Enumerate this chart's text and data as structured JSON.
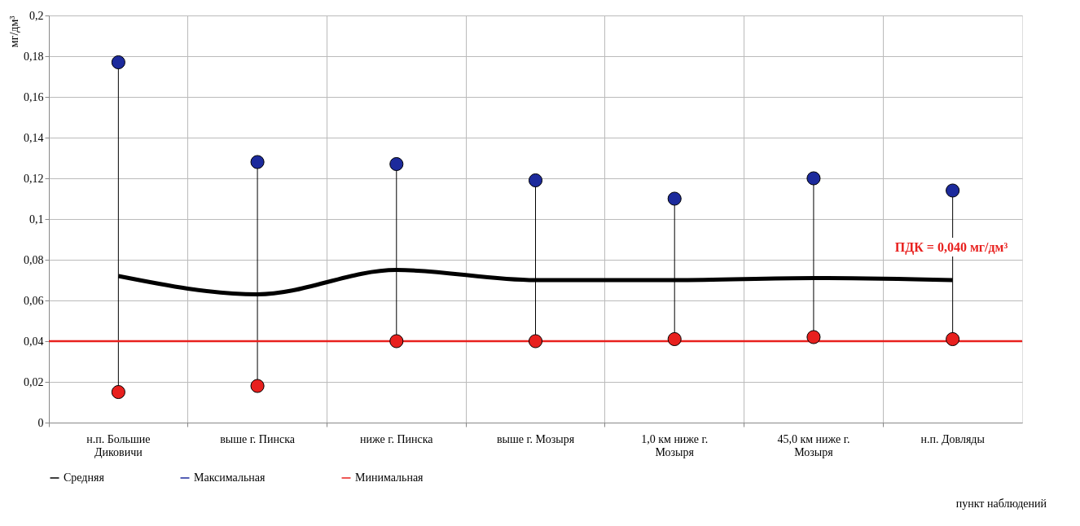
{
  "chart_data": {
    "type": "line",
    "ylabel": "мг/дм³",
    "xlabel": "пункт наблюдений",
    "categories": [
      "н.п. Большие\nДиковичи",
      "выше г. Пинска",
      "ниже г. Пинска",
      "выше г. Мозыря",
      "1,0 км ниже г.\nМозыря",
      "45,0 км ниже г.\nМозыря",
      "н.п. Довляды"
    ],
    "series": [
      {
        "name": "Средняя",
        "type": "line",
        "color": "#000000",
        "values": [
          0.072,
          0.063,
          0.075,
          0.07,
          0.07,
          0.071,
          0.07
        ]
      },
      {
        "name": "Максимальная",
        "type": "scatter",
        "marker": "circle",
        "color": "#1c2a9c",
        "values": [
          0.177,
          0.128,
          0.127,
          0.119,
          0.11,
          0.12,
          0.114
        ]
      },
      {
        "name": "Минимальная",
        "type": "scatter",
        "marker": "circle",
        "color": "#e8201e",
        "values": [
          0.015,
          0.018,
          0.04,
          0.04,
          0.041,
          0.042,
          0.041
        ]
      }
    ],
    "ref_lines": [
      {
        "axis": "y",
        "value": 0.04,
        "label": "ПДК = 0,040 мг/дм³",
        "color": "#e8201e"
      }
    ],
    "ylim": [
      0,
      0.2
    ],
    "yticks": [
      {
        "value": 0,
        "label": "0"
      },
      {
        "value": 0.02,
        "label": "0,02"
      },
      {
        "value": 0.04,
        "label": "0,04"
      },
      {
        "value": 0.06,
        "label": "0,06"
      },
      {
        "value": 0.08,
        "label": "0,08"
      },
      {
        "value": 0.1,
        "label": "0,1"
      },
      {
        "value": 0.12,
        "label": "0,12"
      },
      {
        "value": 0.14,
        "label": "0,14"
      },
      {
        "value": 0.16,
        "label": "0,16"
      },
      {
        "value": 0.18,
        "label": "0,18"
      },
      {
        "value": 0.2,
        "label": "0,2"
      }
    ],
    "grid": true,
    "legend": "bottom",
    "line_style": "solid"
  }
}
